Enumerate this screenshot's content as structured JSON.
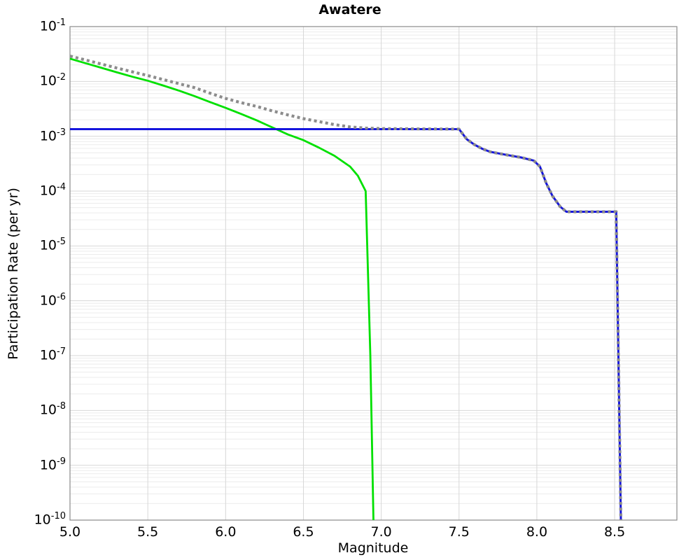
{
  "title": "Awatere",
  "chart_data": {
    "type": "line",
    "title": "Awatere",
    "xlabel": "Magnitude",
    "ylabel": "Participation Rate (per yr)",
    "x_scale": "linear",
    "y_scale": "log",
    "xlim": [
      5.0,
      8.9
    ],
    "ylim": [
      1e-10,
      0.1
    ],
    "x_ticks": [
      5.0,
      5.5,
      6.0,
      6.5,
      7.0,
      7.5,
      8.0,
      8.5
    ],
    "y_tick_exponents": [
      -1,
      -2,
      -3,
      -4,
      -5,
      -6,
      -7,
      -8,
      -9,
      -10
    ],
    "grid": true,
    "legend": false,
    "colors": {
      "major_grid": "#d7d7d7",
      "minor_grid": "#ececec",
      "border": "#8a8a8a",
      "green_line": "#00e000",
      "blue_line": "#1515dd",
      "gray_dotted_line": "#8c8c8c"
    },
    "series": [
      {
        "name": "green-curve",
        "color_key": "green_line",
        "style": "solid",
        "width": 2.8,
        "points": [
          [
            5.0,
            0.026
          ],
          [
            5.1,
            0.0215
          ],
          [
            5.2,
            0.0178
          ],
          [
            5.3,
            0.0147
          ],
          [
            5.4,
            0.0122
          ],
          [
            5.5,
            0.0103
          ],
          [
            5.6,
            0.0084
          ],
          [
            5.7,
            0.0068
          ],
          [
            5.8,
            0.0054
          ],
          [
            5.9,
            0.0042
          ],
          [
            6.0,
            0.0033
          ],
          [
            6.1,
            0.00255
          ],
          [
            6.2,
            0.00195
          ],
          [
            6.3,
            0.00145
          ],
          [
            6.4,
            0.00108
          ],
          [
            6.5,
            0.00085
          ],
          [
            6.6,
            0.00062
          ],
          [
            6.7,
            0.00044
          ],
          [
            6.8,
            0.00028
          ],
          [
            6.85,
            0.00019
          ],
          [
            6.9,
            0.0001
          ],
          [
            6.93,
            1e-07
          ],
          [
            6.95,
            1e-10
          ]
        ]
      },
      {
        "name": "blue-curve",
        "color_key": "blue_line",
        "style": "solid",
        "width": 3,
        "points": [
          [
            5.0,
            0.00135
          ],
          [
            7.5,
            0.00135
          ],
          [
            7.55,
            0.00088
          ],
          [
            7.6,
            0.0007
          ],
          [
            7.65,
            0.00059
          ],
          [
            7.7,
            0.00052
          ],
          [
            7.8,
            0.00046
          ],
          [
            7.9,
            0.00041
          ],
          [
            7.98,
            0.00036
          ],
          [
            8.02,
            0.00028
          ],
          [
            8.06,
            0.00014
          ],
          [
            8.1,
            8.2e-05
          ],
          [
            8.15,
            5.2e-05
          ],
          [
            8.19,
            4.2e-05
          ],
          [
            8.51,
            4.2e-05
          ],
          [
            8.54,
            1e-10
          ]
        ]
      },
      {
        "name": "gray-dotted-total-curve",
        "color_key": "gray_dotted_line",
        "style": "dotted",
        "width": 4.2,
        "points": [
          [
            5.0,
            0.029
          ],
          [
            5.1,
            0.0246
          ],
          [
            5.2,
            0.0208
          ],
          [
            5.3,
            0.0176
          ],
          [
            5.4,
            0.015
          ],
          [
            5.5,
            0.0128
          ],
          [
            5.6,
            0.0108
          ],
          [
            5.7,
            0.0091
          ],
          [
            5.8,
            0.0077
          ],
          [
            5.9,
            0.0061
          ],
          [
            6.0,
            0.0049
          ],
          [
            6.1,
            0.0041
          ],
          [
            6.2,
            0.0035
          ],
          [
            6.3,
            0.0029
          ],
          [
            6.4,
            0.00245
          ],
          [
            6.5,
            0.0021
          ],
          [
            6.6,
            0.00185
          ],
          [
            6.7,
            0.00163
          ],
          [
            6.8,
            0.00148
          ],
          [
            6.9,
            0.00141
          ],
          [
            7.0,
            0.00138
          ],
          [
            7.25,
            0.00136
          ],
          [
            7.5,
            0.00135
          ],
          [
            7.55,
            0.00088
          ],
          [
            7.6,
            0.0007
          ],
          [
            7.65,
            0.00059
          ],
          [
            7.7,
            0.00052
          ],
          [
            7.8,
            0.00046
          ],
          [
            7.9,
            0.00041
          ],
          [
            7.98,
            0.00036
          ],
          [
            8.02,
            0.00028
          ],
          [
            8.06,
            0.00014
          ],
          [
            8.1,
            8.2e-05
          ],
          [
            8.15,
            5.2e-05
          ],
          [
            8.19,
            4.2e-05
          ],
          [
            8.51,
            4.2e-05
          ],
          [
            8.54,
            1e-10
          ]
        ]
      }
    ]
  }
}
